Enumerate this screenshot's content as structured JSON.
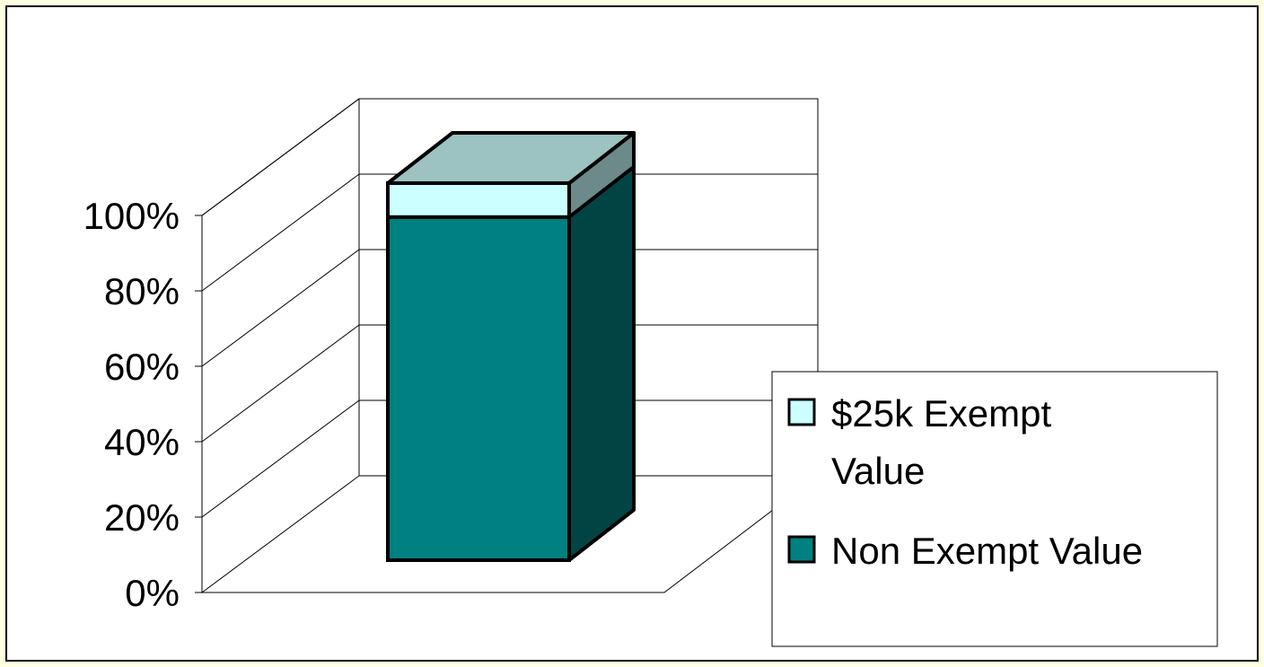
{
  "chart_data": {
    "type": "bar",
    "stacked": true,
    "percent_stacked": true,
    "three_d": true,
    "categories": [
      ""
    ],
    "series": [
      {
        "name": "Non Exempt Value",
        "values": [
          91
        ],
        "color": "#008080"
      },
      {
        "name": "$25k Exempt Value",
        "values": [
          9
        ],
        "color": "#ccffff"
      }
    ],
    "y_ticks": [
      "0%",
      "20%",
      "40%",
      "60%",
      "80%",
      "100%"
    ],
    "ylim": [
      0,
      100
    ],
    "grid": true,
    "legend": {
      "placement": "right",
      "entries": [
        {
          "series": 1,
          "lines": [
            "$25k Exempt",
            "Value"
          ]
        },
        {
          "series": 0,
          "lines": [
            "Non Exempt Value"
          ]
        }
      ]
    },
    "title": "",
    "xlabel": "",
    "ylabel": ""
  },
  "colors": {
    "background": "#ffffe1",
    "plot": "#ffffff",
    "series_top": "#9cc2c2",
    "series_side_dark": "#024444",
    "series_side_light": "#6c8a8a"
  }
}
